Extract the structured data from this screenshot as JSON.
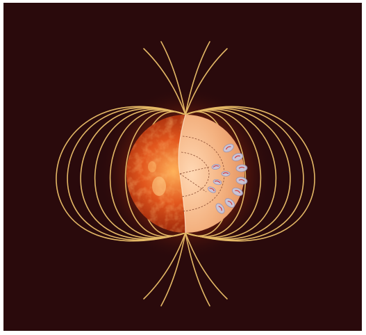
{
  "illustration": {
    "subject": "sun-magnetic-field-cutaway",
    "colors": {
      "background": "#2a0a0c",
      "field_line": "#e4b866",
      "photosphere_hot": "#ffb25a",
      "photosphere_mid": "#e2561d",
      "photosphere_dark": "#8f2109",
      "interior": "#f3b07e",
      "interior_highlight": "#ffd8b4",
      "cell_fill": "#c8c8e0",
      "cell_stroke": "#9090b8",
      "flow_red": "#d23a3a"
    }
  }
}
